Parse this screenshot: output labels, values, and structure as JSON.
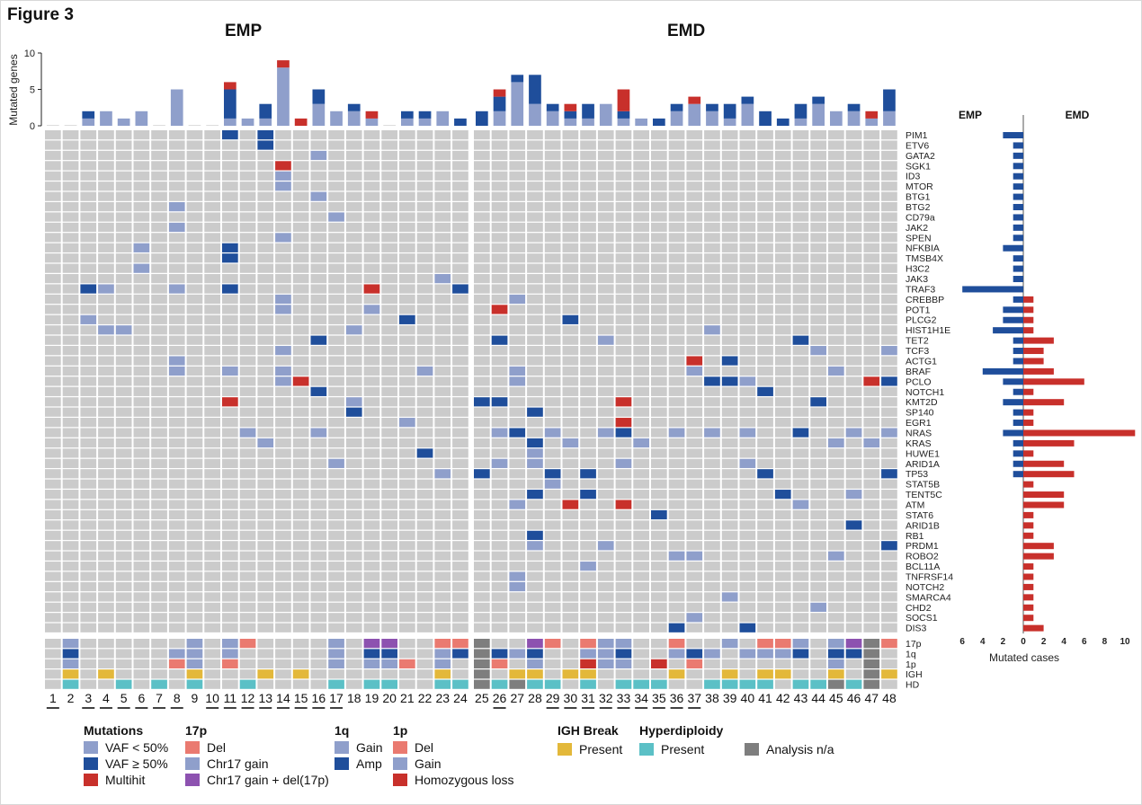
{
  "figure_title": "Figure 3",
  "colors": {
    "empty": "#cbcbcb",
    "light": "#8f9fcb",
    "dark": "#1f4e9b",
    "red": "#c8302b",
    "del": "#ea7a70",
    "purple": "#8d52b0",
    "yellow": "#e3b83a",
    "teal": "#5bc0c6",
    "grey": "#7e7e7e",
    "emp_bar": "#1f4e9b",
    "emd_bar": "#c8302b"
  },
  "chart_data": {
    "type": "heatmap",
    "title": "Figure 3",
    "groups": [
      {
        "name": "EMP",
        "patients": [
          1,
          2,
          3,
          4,
          5,
          6,
          7,
          8,
          9,
          10,
          11,
          12,
          13,
          14,
          15,
          16,
          17,
          18,
          19,
          20,
          21,
          22,
          23,
          24
        ]
      },
      {
        "name": "EMD",
        "patients": [
          25,
          26,
          27,
          28,
          29,
          30,
          31,
          32,
          33,
          34,
          35,
          36,
          37,
          38,
          39,
          40,
          41,
          42,
          43,
          44,
          45,
          46,
          47,
          48
        ]
      }
    ],
    "underlined_patients": [
      1,
      3,
      4,
      5,
      6,
      7,
      8,
      10,
      11,
      12,
      13,
      14,
      15,
      16,
      17,
      26,
      29,
      30,
      31,
      32,
      33,
      34,
      35,
      36,
      37
    ],
    "top_bar": {
      "ylabel": "Mutated genes",
      "yticks": [
        0,
        5,
        10
      ],
      "ylim": [
        0,
        10
      ],
      "series_order": [
        "VAF < 50%",
        "VAF ≥ 50%",
        "Multihit"
      ],
      "values": [
        [
          0,
          0,
          0
        ],
        [
          0,
          0,
          0
        ],
        [
          1,
          1,
          0
        ],
        [
          2,
          0,
          0
        ],
        [
          1,
          0,
          0
        ],
        [
          2,
          0,
          0
        ],
        [
          0,
          0,
          0
        ],
        [
          5,
          0,
          0
        ],
        [
          0,
          0,
          0
        ],
        [
          0,
          0,
          0
        ],
        [
          1,
          4,
          1
        ],
        [
          1,
          0,
          0
        ],
        [
          1,
          2,
          0
        ],
        [
          8,
          0,
          1
        ],
        [
          0,
          0,
          1
        ],
        [
          3,
          2,
          0
        ],
        [
          2,
          0,
          0
        ],
        [
          2,
          1,
          0
        ],
        [
          1,
          0,
          1
        ],
        [
          0,
          0,
          0
        ],
        [
          1,
          1,
          0
        ],
        [
          1,
          1,
          0
        ],
        [
          2,
          0,
          0
        ],
        [
          0,
          1,
          0
        ],
        [
          0,
          2,
          0
        ],
        [
          2,
          2,
          1
        ],
        [
          6,
          1,
          0
        ],
        [
          3,
          4,
          0
        ],
        [
          2,
          1,
          0
        ],
        [
          1,
          1,
          1
        ],
        [
          1,
          2,
          0
        ],
        [
          3,
          0,
          0
        ],
        [
          1,
          1,
          3
        ],
        [
          1,
          0,
          0
        ],
        [
          0,
          1,
          0
        ],
        [
          2,
          1,
          0
        ],
        [
          3,
          0,
          1
        ],
        [
          2,
          1,
          0
        ],
        [
          1,
          2,
          0
        ],
        [
          3,
          1,
          0
        ],
        [
          0,
          2,
          0
        ],
        [
          0,
          1,
          0
        ],
        [
          1,
          2,
          0
        ],
        [
          3,
          1,
          0
        ],
        [
          2,
          0,
          0
        ],
        [
          2,
          1,
          0
        ],
        [
          1,
          0,
          1
        ],
        [
          2,
          3,
          0
        ]
      ]
    },
    "genes": [
      "PIM1",
      "ETV6",
      "GATA2",
      "SGK1",
      "ID3",
      "MTOR",
      "BTG1",
      "BTG2",
      "CD79a",
      "JAK2",
      "SPEN",
      "NFKBIA",
      "TMSB4X",
      "H3C2",
      "JAK3",
      "TRAF3",
      "CREBBP",
      "POT1",
      "PLCG2",
      "HIST1H1E",
      "TET2",
      "TCF3",
      "ACTG1",
      "BRAF",
      "PCLO",
      "NOTCH1",
      "KMT2D",
      "SP140",
      "EGR1",
      "NRAS",
      "KRAS",
      "HUWE1",
      "ARID1A",
      "TP53",
      "STAT5B",
      "TENT5C",
      "ATM",
      "STAT6",
      "ARID1B",
      "RB1",
      "PRDM1",
      "ROBO2",
      "BCL11A",
      "TNFRSF14",
      "NOTCH2",
      "SMARCA4",
      "CHD2",
      "SOCS1",
      "DIS3"
    ],
    "mutations": {
      "PIM1": {
        "11": "D",
        "13": "D"
      },
      "ETV6": {
        "13": "D"
      },
      "GATA2": {
        "16": "L"
      },
      "SGK1": {
        "14": "R"
      },
      "ID3": {
        "14": "L"
      },
      "MTOR": {
        "14": "L"
      },
      "BTG1": {
        "16": "L"
      },
      "BTG2": {
        "8": "L"
      },
      "CD79a": {
        "17": "L"
      },
      "JAK2": {
        "8": "L"
      },
      "SPEN": {
        "14": "L"
      },
      "NFKBIA": {
        "6": "L",
        "11": "D"
      },
      "TMSB4X": {
        "11": "D"
      },
      "H3C2": {
        "6": "L"
      },
      "JAK3": {
        "23": "L"
      },
      "TRAF3": {
        "3": "D",
        "4": "L",
        "8": "L",
        "11": "D",
        "19": "R",
        "24": "D"
      },
      "CREBBP": {
        "14": "L",
        "27": "L"
      },
      "POT1": {
        "14": "L",
        "19": "L",
        "26": "R"
      },
      "PLCG2": {
        "3": "L",
        "21": "D",
        "30": "D"
      },
      "HIST1H1E": {
        "4": "L",
        "5": "L",
        "18": "L",
        "38": "L"
      },
      "TET2": {
        "16": "D",
        "26": "D",
        "32": "L",
        "43": "D"
      },
      "TCF3": {
        "14": "L",
        "44": "L",
        "48": "L"
      },
      "ACTG1": {
        "8": "L",
        "37": "R",
        "39": "D"
      },
      "BRAF": {
        "8": "L",
        "11": "L",
        "14": "L",
        "22": "L",
        "27": "L",
        "37": "L",
        "45": "L"
      },
      "PCLO": {
        "14": "L",
        "15": "R",
        "27": "L",
        "38": "D",
        "39": "D",
        "40": "L",
        "47": "R",
        "48": "D"
      },
      "NOTCH1": {
        "16": "D",
        "41": "D"
      },
      "KMT2D": {
        "11": "R",
        "18": "L",
        "25": "D",
        "26": "D",
        "33": "R",
        "44": "D"
      },
      "SP140": {
        "18": "D",
        "28": "D"
      },
      "EGR1": {
        "21": "L",
        "33": "R"
      },
      "NRAS": {
        "12": "L",
        "16": "L",
        "26": "L",
        "27": "D",
        "29": "L",
        "32": "L",
        "33": "D",
        "36": "L",
        "38": "L",
        "40": "L",
        "43": "D",
        "46": "L",
        "48": "L"
      },
      "KRAS": {
        "13": "L",
        "28": "D",
        "30": "L",
        "34": "L",
        "45": "L",
        "47": "L"
      },
      "HUWE1": {
        "22": "D",
        "28": "L"
      },
      "ARID1A": {
        "17": "L",
        "26": "L",
        "28": "L",
        "33": "L",
        "40": "L"
      },
      "TP53": {
        "23": "L",
        "25": "D",
        "29": "D",
        "31": "D",
        "41": "D",
        "48": "D"
      },
      "STAT5B": {
        "29": "L"
      },
      "TENT5C": {
        "28": "D",
        "31": "D",
        "42": "D",
        "46": "L"
      },
      "ATM": {
        "27": "L",
        "30": "R",
        "33": "R",
        "43": "L"
      },
      "STAT6": {
        "35": "D"
      },
      "ARID1B": {
        "46": "D"
      },
      "RB1": {
        "28": "D"
      },
      "PRDM1": {
        "28": "L",
        "32": "L",
        "48": "D"
      },
      "ROBO2": {
        "36": "L",
        "37": "L",
        "45": "L"
      },
      "BCL11A": {
        "31": "L"
      },
      "TNFRSF14": {
        "27": "L"
      },
      "NOTCH2": {
        "27": "L"
      },
      "SMARCA4": {
        "39": "L"
      },
      "CHD2": {
        "44": "L"
      },
      "SOCS1": {
        "37": "L"
      },
      "DIS3": {
        "36": "D",
        "40": "D"
      }
    },
    "annotation_tracks": {
      "labels": [
        "17p",
        "1q",
        "1p",
        "IGH",
        "HD"
      ],
      "17p": {
        "2": "chr17gain",
        "9": "chr17gain",
        "11": "chr17gain",
        "12": "del",
        "17": "chr17gain",
        "19": "both",
        "20": "both",
        "23": "del",
        "24": "del",
        "25": "na",
        "28": "both",
        "29": "del",
        "31": "del",
        "32": "chr17gain",
        "33": "chr17gain",
        "36": "del",
        "39": "chr17gain",
        "41": "del",
        "42": "del",
        "43": "chr17gain",
        "45": "chr17gain",
        "46": "both",
        "47": "na",
        "48": "del"
      },
      "1q": {
        "2": "amp",
        "8": "gain",
        "9": "gain",
        "11": "gain",
        "17": "gain",
        "19": "amp",
        "20": "amp",
        "23": "gain",
        "24": "amp",
        "25": "na",
        "26": "amp",
        "27": "gain",
        "28": "amp",
        "31": "gain",
        "32": "gain",
        "33": "amp",
        "36": "gain",
        "37": "amp",
        "38": "gain",
        "40": "gain",
        "41": "gain",
        "42": "gain",
        "43": "amp",
        "45": "amp",
        "46": "amp",
        "47": "na"
      },
      "1p": {
        "2": "gain",
        "8": "del",
        "9": "gain",
        "11": "del",
        "17": "gain",
        "19": "gain",
        "20": "gain",
        "21": "del",
        "23": "gain",
        "25": "na",
        "26": "del",
        "28": "gain",
        "31": "homloss",
        "32": "gain",
        "33": "gain",
        "35": "homloss",
        "37": "del",
        "45": "gain",
        "47": "na"
      },
      "IGH": {
        "2": "present",
        "4": "present",
        "9": "present",
        "13": "present",
        "15": "present",
        "23": "present",
        "25": "na",
        "27": "present",
        "28": "present",
        "30": "present",
        "31": "present",
        "36": "present",
        "39": "present",
        "41": "present",
        "42": "present",
        "45": "present",
        "47": "na",
        "48": "present"
      },
      "HD": {
        "2": "present",
        "5": "present",
        "7": "present",
        "9": "present",
        "12": "present",
        "17": "present",
        "19": "present",
        "20": "present",
        "23": "present",
        "24": "present",
        "25": "na",
        "26": "present",
        "27": "na",
        "28": "present",
        "29": "present",
        "31": "present",
        "33": "present",
        "34": "present",
        "35": "present",
        "38": "present",
        "39": "present",
        "40": "present",
        "41": "present",
        "43": "present",
        "44": "present",
        "45": "na",
        "46": "present",
        "47": "na"
      }
    },
    "side_bar": {
      "type": "bar",
      "left_label": "EMP",
      "right_label": "EMD",
      "xlabel": "Mutated cases",
      "xticks_left": [
        6,
        4,
        2
      ],
      "xticks_right": [
        0,
        2,
        4,
        6,
        8,
        10
      ],
      "emp": [
        2,
        1,
        1,
        1,
        1,
        1,
        1,
        1,
        1,
        1,
        1,
        2,
        1,
        1,
        1,
        6,
        1,
        2,
        2,
        3,
        1,
        1,
        1,
        4,
        2,
        1,
        2,
        1,
        1,
        2,
        1,
        1,
        1,
        1,
        0,
        0,
        0,
        0,
        0,
        0,
        0,
        0,
        0,
        0,
        0,
        0,
        0,
        0,
        0
      ],
      "emd": [
        0,
        0,
        0,
        0,
        0,
        0,
        0,
        0,
        0,
        0,
        0,
        0,
        0,
        0,
        0,
        0,
        1,
        1,
        1,
        1,
        3,
        2,
        2,
        3,
        6,
        1,
        4,
        1,
        1,
        11,
        5,
        1,
        4,
        5,
        1,
        4,
        4,
        1,
        1,
        1,
        3,
        3,
        1,
        1,
        1,
        1,
        1,
        1,
        2
      ]
    }
  },
  "legend": {
    "mutations": {
      "title": "Mutations",
      "items": [
        "VAF < 50%",
        "VAF ≥ 50%",
        "Multihit"
      ]
    },
    "p17": {
      "title": "17p",
      "items": [
        "Del",
        "Chr17 gain",
        "Chr17 gain + del(17p)"
      ]
    },
    "q1": {
      "title": "1q",
      "items": [
        "Gain",
        "Amp"
      ]
    },
    "p1": {
      "title": "1p",
      "items": [
        "Del",
        "Gain",
        "Homozygous loss"
      ]
    },
    "igh": {
      "title": "IGH Break",
      "items": [
        "Present"
      ]
    },
    "hd": {
      "title": "Hyperdiploidy",
      "items": [
        "Present"
      ]
    },
    "na": {
      "items": [
        "Analysis n/a"
      ]
    }
  }
}
